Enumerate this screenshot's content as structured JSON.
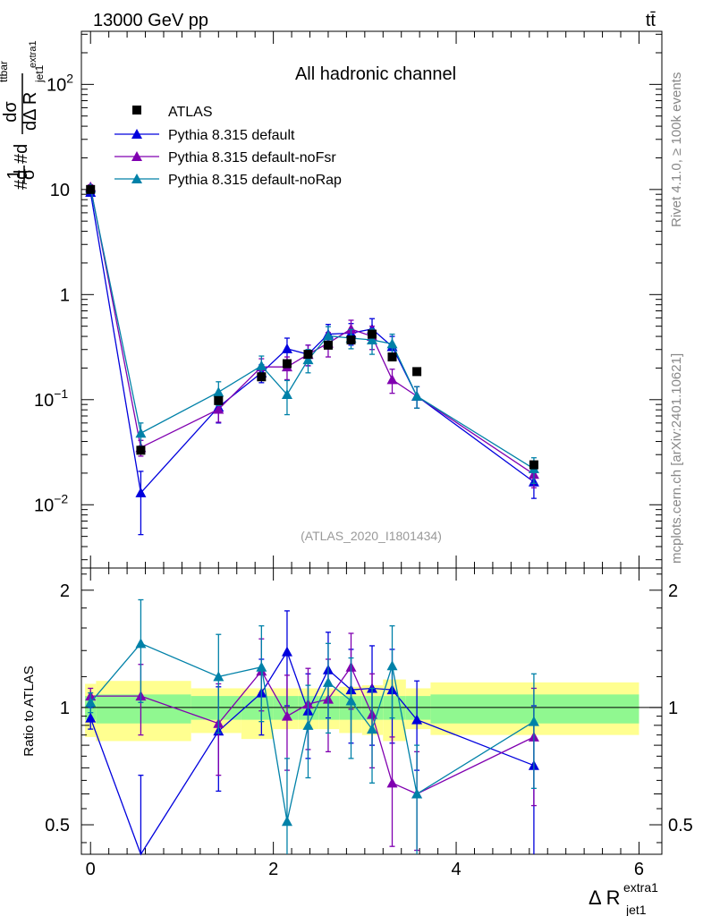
{
  "header": {
    "energy": "13000 GeV pp",
    "process": "tt̄",
    "side_label": "Rivet 4.1.0, ≥ 100k events",
    "side_url": "mcplots.cern.ch [arXiv:2401.10621]"
  },
  "main": {
    "title": "All hadronic channel",
    "analysis": "(ATLAS_2020_I1801434)",
    "ylabel": "#d1/σ#dd σ^ttbar / dΔ R_jet1^extra1",
    "ylabel_prefix": "#d",
    "ylabel_frac1_num": "1",
    "ylabel_frac1_den": "σ",
    "ylabel_mid": "#d",
    "ylabel_frac2_num": "dσ",
    "ylabel_frac2_num_sup": "ttbar",
    "ylabel_frac2_den": "dΔ R",
    "ylabel_frac2_den_sub": "jet1",
    "ylabel_frac2_den_sup": "extra1",
    "y_ticks": [
      {
        "value": 0.01,
        "base": "10",
        "exp": "−2"
      },
      {
        "value": 0.1,
        "base": "10",
        "exp": "−1"
      },
      {
        "value": 1,
        "base": "1",
        "exp": ""
      },
      {
        "value": 10,
        "base": "10",
        "exp": ""
      },
      {
        "value": 100,
        "base": "10",
        "exp": "2"
      }
    ]
  },
  "ratio": {
    "ylabel": "Ratio to ATLAS",
    "y_ticks": [
      {
        "value": 0.5,
        "label": "0.5"
      },
      {
        "value": 1,
        "label": "1"
      },
      {
        "value": 2,
        "label": "2"
      }
    ]
  },
  "x_axis": {
    "label": "Δ R",
    "label_sub": "jet1",
    "label_sup": "extra1",
    "ticks": [
      {
        "value": 0,
        "label": "0"
      },
      {
        "value": 2,
        "label": "2"
      },
      {
        "value": 4,
        "label": "4"
      },
      {
        "value": 6,
        "label": "6"
      }
    ]
  },
  "colors": {
    "atlas": "#000000",
    "default": "#0000dd",
    "noFsr": "#8000b0",
    "noRap": "#0081a8",
    "band_green": "#90f890",
    "band_yellow": "#ffff90"
  },
  "chart_data": {
    "type": "scatter",
    "title": "All hadronic channel",
    "xlabel": "Δ R_jet1^extra1",
    "ylabel": "#d1/σ#dd σ^ttbar / dΔ R_jet1^extra1",
    "xlim": [
      -0.1,
      6.25
    ],
    "ylim": [
      0.0025,
      320
    ],
    "yscale": "log",
    "ratio_ylim": [
      0.42,
      2.28
    ],
    "ratio_yscale": "log",
    "legend_position": "top-left",
    "x": [
      0.0,
      0.55,
      1.4,
      1.87,
      2.15,
      2.38,
      2.6,
      2.85,
      3.08,
      3.3,
      3.57,
      4.85
    ],
    "atlas_bins": [
      [
        -0.06,
        0.06
      ],
      [
        0.06,
        1.1
      ],
      [
        1.1,
        1.65
      ],
      [
        1.65,
        2.0
      ],
      [
        2.0,
        2.27
      ],
      [
        2.27,
        2.5
      ],
      [
        2.5,
        2.72
      ],
      [
        2.72,
        2.97
      ],
      [
        2.97,
        3.2
      ],
      [
        3.2,
        3.45
      ],
      [
        3.45,
        3.72
      ],
      [
        3.72,
        6.0
      ]
    ],
    "atlas": {
      "name": "ATLAS",
      "values": [
        10.0,
        0.033,
        0.098,
        0.165,
        0.22,
        0.27,
        0.33,
        0.37,
        0.42,
        0.255,
        0.185,
        0.024
      ],
      "band_inner": [
        [
          0.93,
          1.07
        ],
        [
          0.91,
          1.08
        ],
        [
          0.93,
          1.07
        ],
        [
          0.93,
          1.07
        ],
        [
          0.93,
          1.07
        ],
        [
          0.93,
          1.07
        ],
        [
          0.93,
          1.07
        ],
        [
          0.93,
          1.07
        ],
        [
          0.93,
          1.07
        ],
        [
          0.93,
          1.07
        ],
        [
          0.93,
          1.07
        ],
        [
          0.91,
          1.08
        ]
      ],
      "band_outer": [
        [
          0.84,
          1.15
        ],
        [
          0.82,
          1.17
        ],
        [
          0.86,
          1.12
        ],
        [
          0.83,
          1.12
        ],
        [
          0.88,
          1.12
        ],
        [
          0.88,
          1.12
        ],
        [
          0.88,
          1.12
        ],
        [
          0.86,
          1.13
        ],
        [
          0.85,
          1.14
        ],
        [
          0.82,
          1.18
        ],
        [
          0.88,
          1.12
        ],
        [
          0.85,
          1.16
        ]
      ]
    },
    "series": [
      {
        "name": "Pythia 8.315 default",
        "color": "#0000dd",
        "values": [
          9.4,
          0.013,
          0.085,
          0.18,
          0.305,
          0.27,
          0.42,
          0.43,
          0.47,
          0.32,
          0.108,
          0.0165
        ],
        "errors": [
          0.5,
          0.0078,
          0.025,
          0.035,
          0.08,
          0.06,
          0.1,
          0.1,
          0.12,
          0.08,
          0.025,
          0.005
        ],
        "ratio": [
          0.94,
          0.39,
          0.87,
          1.09,
          1.39,
          0.98,
          1.25,
          1.11,
          1.12,
          1.11,
          0.93,
          0.71
        ],
        "ratio_errors": [
          0.06,
          0.28,
          0.26,
          0.24,
          0.38,
          0.24,
          0.31,
          0.3,
          0.32,
          0.3,
          0.24,
          0.3
        ]
      },
      {
        "name": "Pythia 8.315 default-noFsr",
        "color": "#8000b0",
        "values": [
          10.6,
          0.035,
          0.081,
          0.205,
          0.205,
          0.27,
          0.345,
          0.47,
          0.4,
          0.155,
          0.108,
          0.0195
        ],
        "errors": [
          0.5,
          0.006,
          0.02,
          0.04,
          0.05,
          0.06,
          0.09,
          0.1,
          0.1,
          0.04,
          0.025,
          0.005
        ],
        "ratio": [
          1.07,
          1.07,
          0.91,
          1.24,
          0.95,
          1.02,
          1.05,
          1.27,
          0.96,
          0.64,
          0.6,
          0.84
        ],
        "ratio_errors": [
          0.05,
          0.22,
          0.24,
          0.26,
          0.26,
          0.24,
          0.28,
          0.28,
          0.26,
          0.2,
          0.17,
          0.28
        ]
      },
      {
        "name": "Pythia 8.315 default-noRap",
        "color": "#0081a8",
        "values": [
          10.3,
          0.048,
          0.118,
          0.21,
          0.112,
          0.24,
          0.405,
          0.385,
          0.37,
          0.34,
          0.108,
          0.022
        ],
        "errors": [
          0.5,
          0.012,
          0.03,
          0.05,
          0.04,
          0.06,
          0.09,
          0.08,
          0.1,
          0.08,
          0.025,
          0.006
        ],
        "ratio": [
          1.03,
          1.46,
          1.2,
          1.27,
          0.51,
          0.9,
          1.16,
          1.04,
          0.88,
          1.28,
          0.6,
          0.92
        ],
        "ratio_errors": [
          0.06,
          0.43,
          0.34,
          0.35,
          0.23,
          0.24,
          0.3,
          0.3,
          0.24,
          0.34,
          0.2,
          0.3
        ]
      }
    ]
  }
}
